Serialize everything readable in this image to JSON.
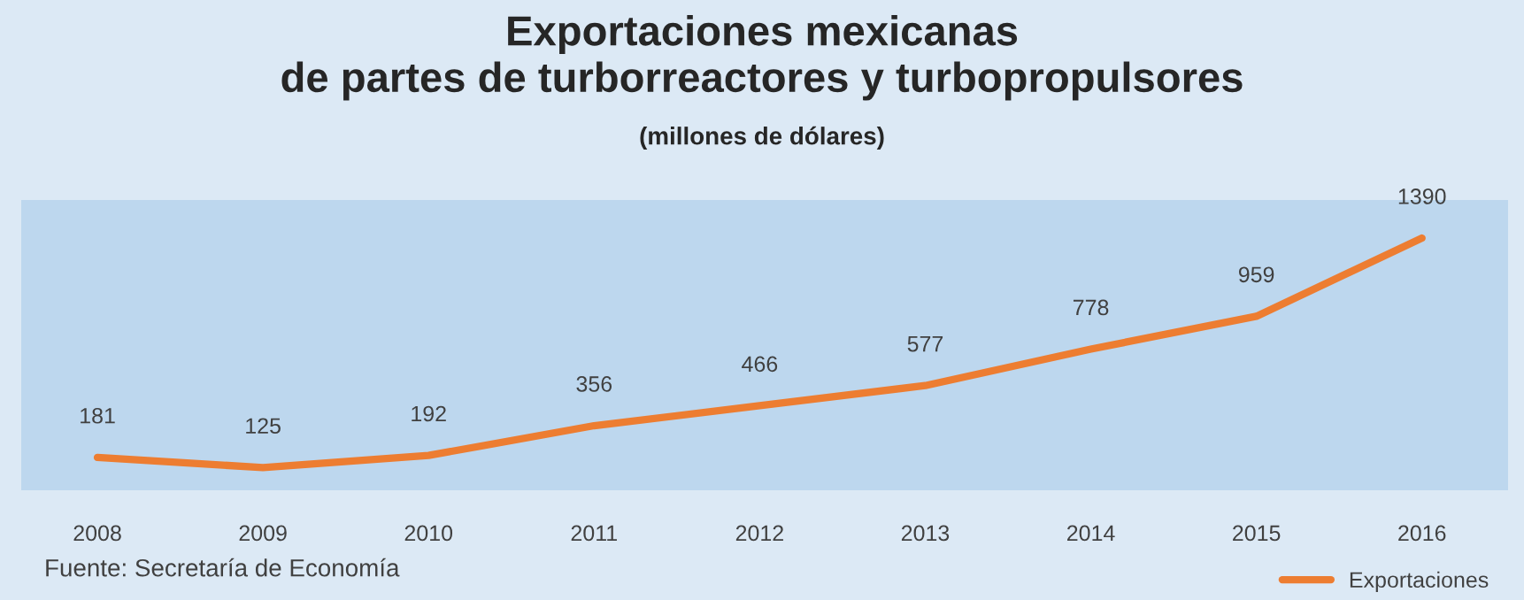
{
  "chart_data": {
    "type": "line",
    "title": "Exportaciones mexicanas\nde partes de turborreactores y turbopropulsores",
    "subtitle": "(millones de dólares)",
    "categories": [
      "2008",
      "2009",
      "2010",
      "2011",
      "2012",
      "2013",
      "2014",
      "2015",
      "2016"
    ],
    "series": [
      {
        "name": "Exportaciones",
        "color": "#ed7d31",
        "values": [
          181,
          125,
          192,
          356,
          466,
          577,
          778,
          959,
          1390
        ]
      }
    ],
    "ylim": [
      0,
      1600
    ],
    "tick_labels": "x",
    "data_labels": true,
    "grid": false,
    "legend": "bottom right",
    "marker": "none",
    "line_style": "solid",
    "annotations": [
      "Fuente: Secretaría de Economía"
    ]
  }
}
